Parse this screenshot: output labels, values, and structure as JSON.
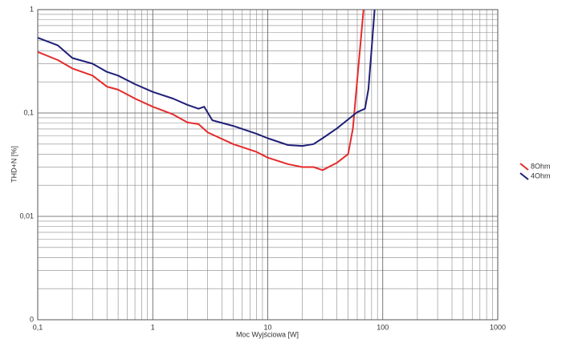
{
  "chart_data": {
    "type": "line",
    "xlabel": "Moc Wyjściowa [W]",
    "ylabel": "THD+N [%]",
    "xscale": "log",
    "yscale": "log",
    "grid": true,
    "minor_grid": true,
    "legend": "right",
    "xlim": [
      0.1,
      1000
    ],
    "xticks": [
      {
        "value": 0.1,
        "label": "0,1"
      },
      1,
      10,
      100,
      1000
    ],
    "ylim": [
      0.001,
      1
    ],
    "yticks": [
      {
        "value": 0.001,
        "label": "0"
      },
      {
        "value": 0.01,
        "label": "0,01"
      },
      {
        "value": 0.1,
        "label": "0,1"
      },
      1
    ],
    "series": [
      {
        "name": "8Ohm",
        "color": "#e52b2b",
        "x": [
          0.1,
          0.15,
          0.2,
          0.3,
          0.4,
          0.5,
          0.7,
          1,
          1.5,
          2,
          2.5,
          3,
          5,
          8,
          10,
          15,
          20,
          25,
          30,
          40,
          50,
          55,
          60,
          68
        ],
        "values": [
          0.39,
          0.325,
          0.27,
          0.23,
          0.18,
          0.168,
          0.138,
          0.115,
          0.097,
          0.081,
          0.078,
          0.065,
          0.05,
          0.042,
          0.037,
          0.032,
          0.03,
          0.03,
          0.028,
          0.033,
          0.04,
          0.071,
          0.21,
          1.0
        ]
      },
      {
        "name": "4Ohm",
        "color": "#1f1f78",
        "x": [
          0.1,
          0.15,
          0.2,
          0.3,
          0.4,
          0.5,
          0.7,
          1,
          1.5,
          2,
          2.5,
          2.8,
          3.3,
          5,
          8,
          10,
          15,
          20,
          25,
          30,
          40,
          60,
          70,
          75,
          80,
          85
        ],
        "values": [
          0.535,
          0.45,
          0.34,
          0.3,
          0.25,
          0.23,
          0.19,
          0.16,
          0.138,
          0.12,
          0.11,
          0.115,
          0.085,
          0.075,
          0.063,
          0.057,
          0.049,
          0.048,
          0.05,
          0.057,
          0.071,
          0.102,
          0.11,
          0.17,
          0.42,
          1.0
        ]
      }
    ]
  }
}
